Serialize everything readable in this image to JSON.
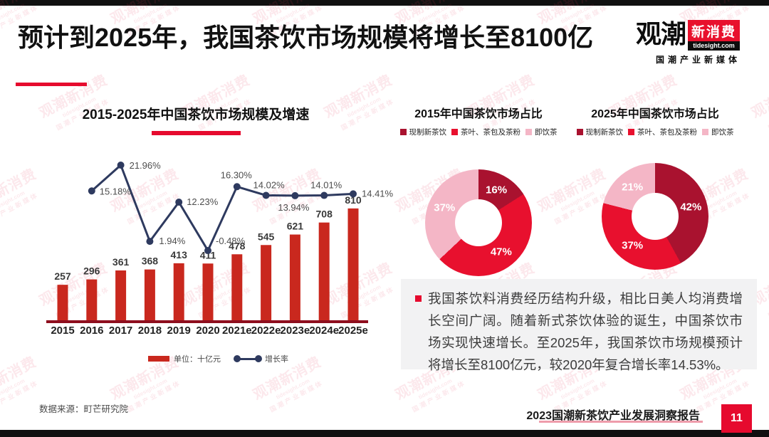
{
  "header": {
    "title": "预计到2025年，我国茶饮市场规模将增长至8100亿"
  },
  "logo": {
    "primary": "观潮",
    "secondary": "新消费",
    "domain": "tidesight.com",
    "tagline": "国潮产业新媒体"
  },
  "watermark": {
    "line1": "观潮新消费",
    "line2": "tidesight.com",
    "line3": "国潮产业新媒体"
  },
  "combo_legend": {
    "bar_label": "单位：十亿元",
    "line_label": "增长率"
  },
  "note": {
    "text": "我国茶饮料消费经历结构升级，相比日美人均消费增长空间广阔。随着新式茶饮体验的诞生，中国茶饮市场实现快速增长。至2025年，我国茶饮市场规模预计将增长至8100亿元，较2020年复合增长率14.53%。"
  },
  "footer": {
    "source": "数据来源：町芒研究院",
    "report": "2023国潮新茶饮产业发展洞察报告",
    "page": "11"
  },
  "colors": {
    "accent_red": "#e60a2e",
    "bar_red": "#c9281e",
    "baseline_dark_red": "#8e0e1e",
    "line_navy": "#2e3a5f",
    "donut_dark_red": "#a9122f",
    "donut_red": "#e8102e",
    "donut_pink": "#f4b6c6",
    "label_gray": "#4d4d4d"
  },
  "chart_data": [
    {
      "type": "bar",
      "title": "2015-2025年中国茶饮市场规模及增速",
      "categories": [
        "2015",
        "2016",
        "2017",
        "2018",
        "2019",
        "2020",
        "2021e",
        "2022e",
        "2023e",
        "2024e",
        "2025e"
      ],
      "series": [
        {
          "name": "单位：十亿元",
          "type": "bar",
          "color": "#c9281e",
          "values": [
            257,
            296,
            361,
            368,
            413,
            411,
            478,
            545,
            621,
            708,
            810
          ]
        },
        {
          "name": "增长率",
          "type": "line",
          "color": "#2e3a5f",
          "values": [
            null,
            15.18,
            21.96,
            1.94,
            12.23,
            -0.48,
            16.3,
            14.02,
            13.94,
            14.01,
            14.41
          ],
          "labels": [
            null,
            "15.18%",
            "21.96%",
            "1.94%",
            "12.23%",
            "-0.48%",
            "16.30%",
            "14.02%",
            "13.94%",
            "14.01%",
            "14.41%"
          ]
        }
      ],
      "ylabel": "十亿元",
      "legend_position": "bottom",
      "grid": false
    },
    {
      "type": "pie",
      "subtype": "donut",
      "title": "2015年中国茶饮市场占比",
      "labels": [
        "现制新茶饮",
        "茶叶、茶包及茶粉",
        "即饮茶"
      ],
      "values": [
        16,
        47,
        37
      ],
      "colors": [
        "#a9122f",
        "#e8102e",
        "#f4b6c6"
      ],
      "legend_position": "top"
    },
    {
      "type": "pie",
      "subtype": "donut",
      "title": "2025年中国茶饮市场占比",
      "labels": [
        "现制新茶饮",
        "茶叶、茶包及茶粉",
        "即饮茶"
      ],
      "values": [
        42,
        37,
        21
      ],
      "colors": [
        "#a9122f",
        "#e8102e",
        "#f4b6c6"
      ],
      "legend_position": "top"
    }
  ]
}
